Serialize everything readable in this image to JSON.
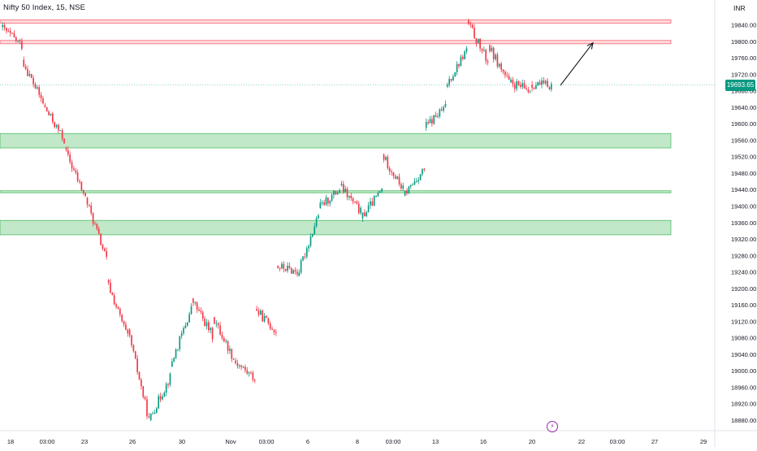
{
  "header": {
    "title": "Nifty 50 Index, 15, NSE",
    "currency": "INR"
  },
  "last_price": {
    "label": "19693.65"
  },
  "colors": {
    "up": "#089981",
    "down": "#f23645",
    "zone_supply": "#f23645",
    "zone_demand": "#22ab3c",
    "axis_text": "#131722"
  },
  "icons": {
    "lightning": "lightning-icon"
  },
  "chart_data": {
    "type": "candlestick",
    "ylim": [
      18860,
      19880
    ],
    "y_ticks": [
      19840.0,
      19800.0,
      19760.0,
      19720.0,
      19680.0,
      19640.0,
      19600.0,
      19560.0,
      19520.0,
      19480.0,
      19440.0,
      19400.0,
      19360.0,
      19320.0,
      19280.0,
      19240.0,
      19200.0,
      19160.0,
      19120.0,
      19080.0,
      19040.0,
      19000.0,
      18960.0,
      18920.0,
      18880.0
    ],
    "x_ticks": [
      "18",
      "03:00",
      "23",
      "26",
      "30",
      "Nov",
      "03:00",
      "6",
      "8",
      "03:00",
      "13",
      "16",
      "20",
      "22",
      "03:00",
      "27",
      "29"
    ],
    "zones": [
      {
        "kind": "supply",
        "y1": 19852,
        "y2": 19844
      },
      {
        "kind": "supply",
        "y1": 19802,
        "y2": 19794
      },
      {
        "kind": "demand",
        "y1": 19576,
        "y2": 19541
      },
      {
        "kind": "demand",
        "y1": 19437,
        "y2": 19432
      },
      {
        "kind": "demand",
        "y1": 19365,
        "y2": 19330
      }
    ],
    "last_value": 19693.65,
    "arrow": {
      "from": [
        19693,
        "20+"
      ],
      "to": [
        19796,
        "22"
      ]
    },
    "anchors": [
      [
        19835,
        19790
      ],
      [
        19755,
        19650
      ],
      [
        19645,
        19560
      ],
      [
        19540,
        19420
      ],
      [
        19420,
        19270
      ],
      [
        19220,
        19080
      ],
      [
        19100,
        18880
      ],
      [
        18880,
        18985
      ],
      [
        19010,
        19150
      ],
      [
        19175,
        19085
      ],
      [
        19130,
        19030
      ],
      [
        19025,
        18980
      ],
      [
        19150,
        19095
      ],
      [
        19255,
        19240
      ],
      [
        19230,
        19380
      ],
      [
        19395,
        19440
      ],
      [
        19450,
        19385
      ],
      [
        19370,
        19440
      ],
      [
        19525,
        19440
      ],
      [
        19425,
        19490
      ],
      [
        19590,
        19640
      ],
      [
        19690,
        19780
      ],
      [
        19850,
        19750
      ],
      [
        19790,
        19700
      ],
      [
        19700,
        19680
      ],
      [
        19695,
        19693.65
      ]
    ]
  }
}
